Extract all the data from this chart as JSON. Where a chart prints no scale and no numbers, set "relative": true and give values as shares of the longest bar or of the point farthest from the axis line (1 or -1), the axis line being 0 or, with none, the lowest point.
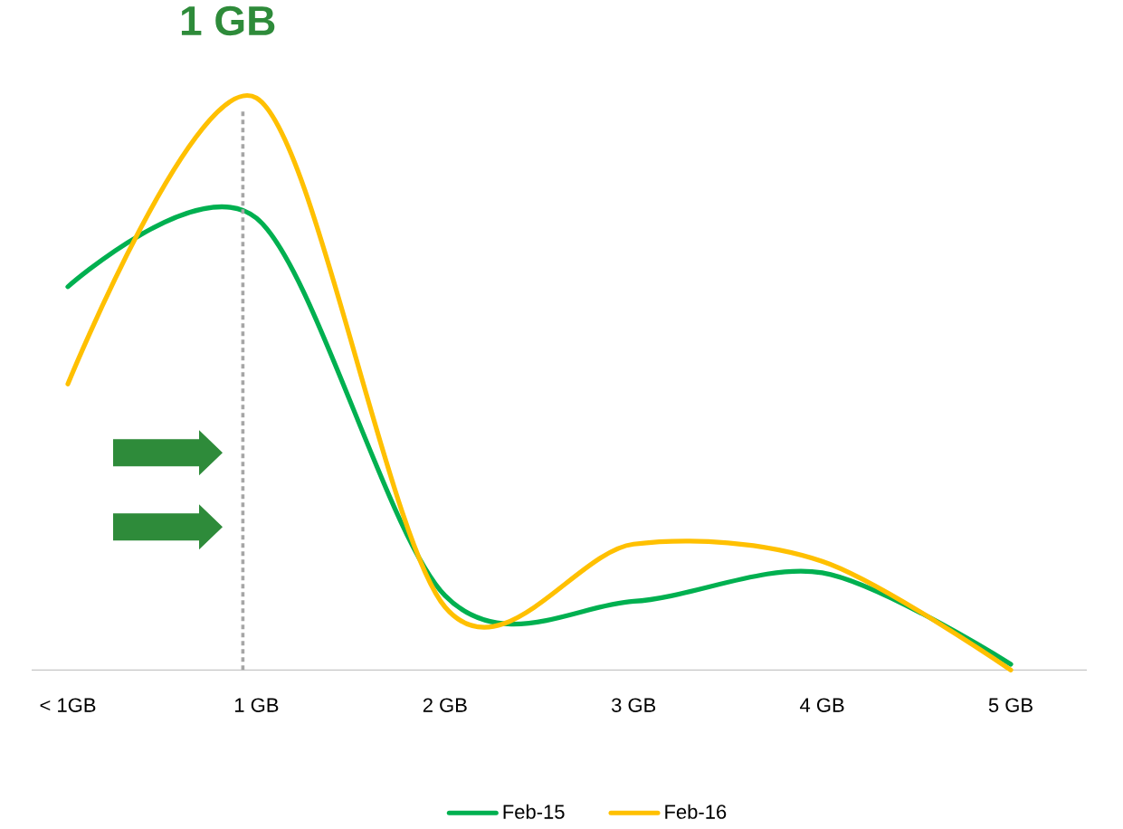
{
  "chart_data": {
    "type": "line",
    "relative": true,
    "categories": [
      "< 1GB",
      "1 GB",
      "2 GB",
      "3 GB",
      "4 GB",
      "5 GB"
    ],
    "series": [
      {
        "name": "Feb-15",
        "color": "#00b050",
        "values": [
          0.67,
          0.79,
          0.13,
          0.12,
          0.17,
          0.01
        ]
      },
      {
        "name": "Feb-16",
        "color": "#ffc000",
        "values": [
          0.5,
          1,
          0.11,
          0.22,
          0.19,
          0
        ]
      }
    ],
    "ref_lines": [
      {
        "axis": "x",
        "value": "1 GB",
        "label": "1 GB",
        "color": "#a6a6a6",
        "line_style": "dotted"
      }
    ],
    "legend": "bottom",
    "grid": false
  }
}
